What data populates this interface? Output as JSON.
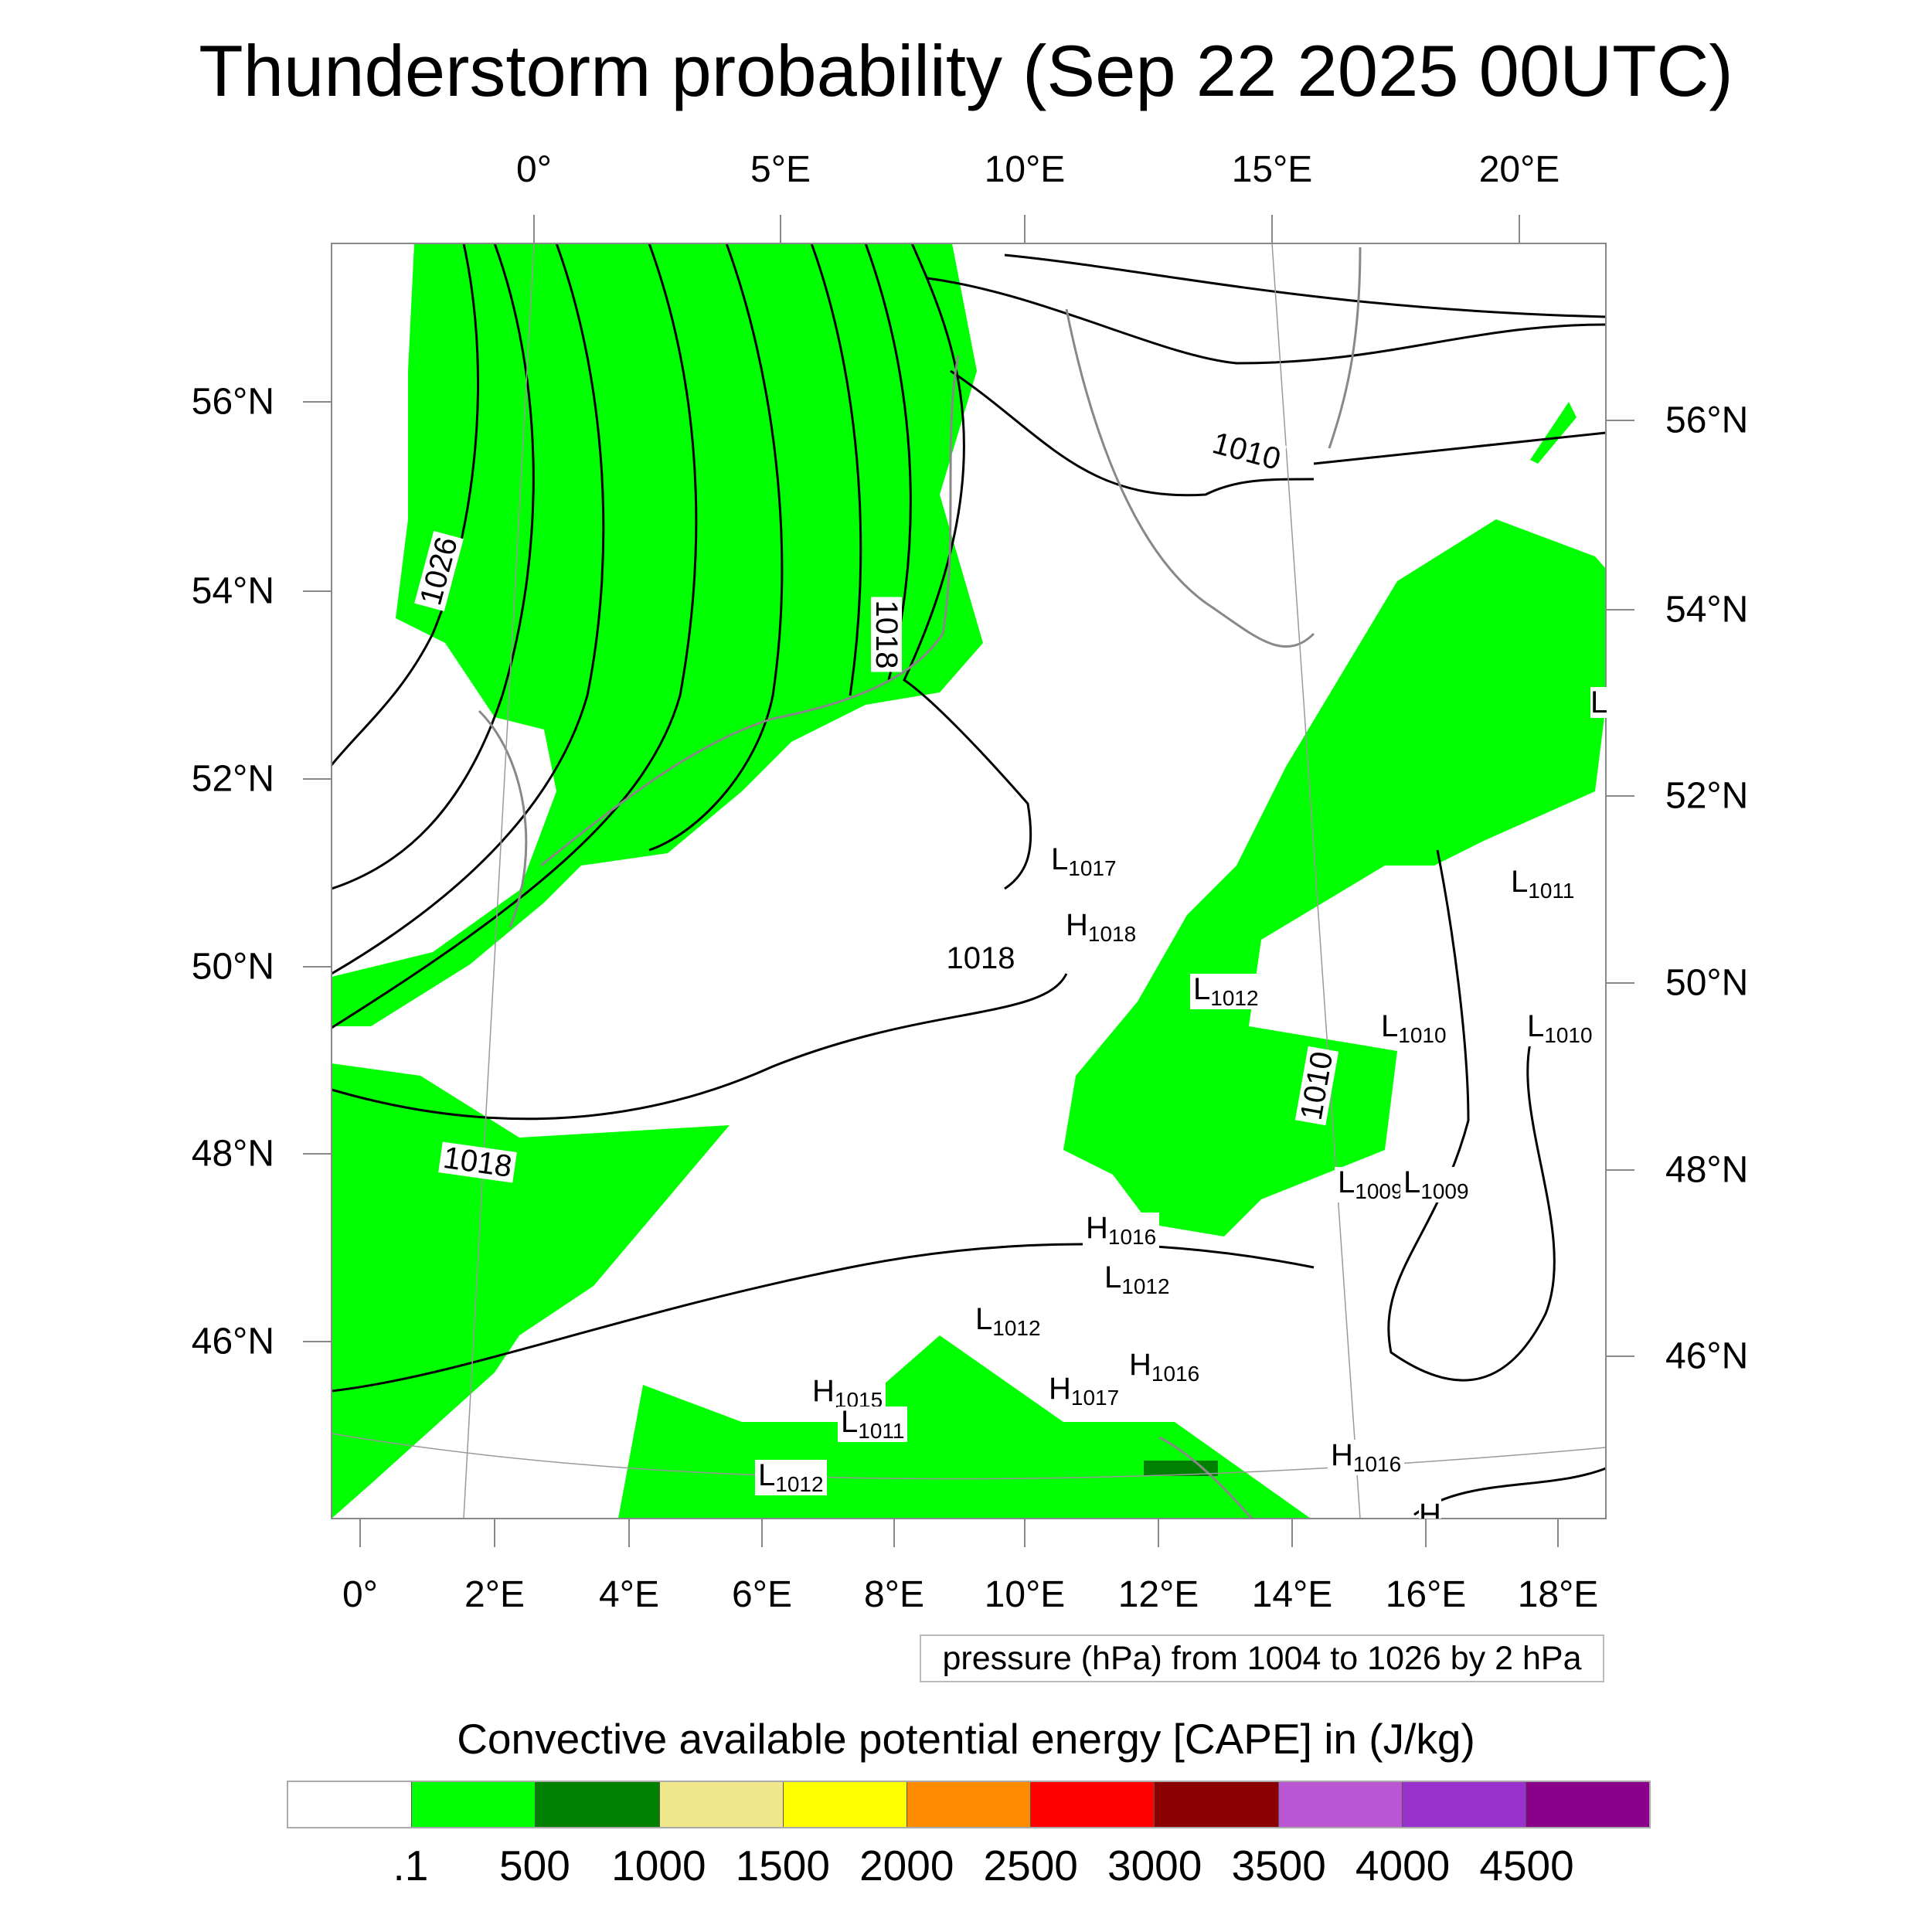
{
  "title": "Thunderstorm probability (Sep 22 2025 00UTC)",
  "axes": {
    "top_lon": [
      "0°",
      "5°E",
      "10°E",
      "15°E",
      "20°E"
    ],
    "bottom_lon": [
      "0°",
      "2°E",
      "4°E",
      "6°E",
      "8°E",
      "10°E",
      "12°E",
      "14°E",
      "16°E",
      "18°E"
    ],
    "left_lat": [
      "56°N",
      "54°N",
      "52°N",
      "50°N",
      "48°N",
      "46°N"
    ],
    "right_lat": [
      "56°N",
      "54°N",
      "52°N",
      "50°N",
      "48°N",
      "46°N"
    ]
  },
  "pressure_centers": [
    {
      "symbol": "L",
      "value": "1017"
    },
    {
      "symbol": "H",
      "value": "1018"
    },
    {
      "symbol": "L",
      "value": "1012"
    },
    {
      "symbol": "L",
      "value": "1010"
    },
    {
      "symbol": "L",
      "value": "1010"
    },
    {
      "symbol": "L",
      "value": "1011"
    },
    {
      "symbol": "L",
      "value": "1009"
    },
    {
      "symbol": "L",
      "value": "1009"
    },
    {
      "symbol": "H",
      "value": "1016"
    },
    {
      "symbol": "L",
      "value": "1012"
    },
    {
      "symbol": "L",
      "value": "1012"
    },
    {
      "symbol": "H",
      "value": "1016"
    },
    {
      "symbol": "H",
      "value": "1017"
    },
    {
      "symbol": "H",
      "value": "1015"
    },
    {
      "symbol": "L",
      "value": "1011"
    },
    {
      "symbol": "L",
      "value": "1012"
    },
    {
      "symbol": "H",
      "value": "1016"
    },
    {
      "symbol": "L",
      "value": ""
    },
    {
      "symbol": "H",
      "value": ""
    }
  ],
  "contour_labels": [
    "1026",
    "1018",
    "1010",
    "1018",
    "1018",
    "1010"
  ],
  "legend_text": "pressure (hPa) from 1004 to 1026 by 2 hPa",
  "colorbar": {
    "title": "Convective available potential energy [CAPE] in (J/kg)",
    "colors": [
      "#ffffff",
      "#00ff00",
      "#008000",
      "#f0e68c",
      "#ffff00",
      "#ff8c00",
      "#ff0000",
      "#8b0000",
      "#ba55d3",
      "#9932cc",
      "#8b008b"
    ],
    "labels": [
      ".1",
      "500",
      "1000",
      "1500",
      "2000",
      "2500",
      "3000",
      "3500",
      "4000",
      "4500"
    ]
  },
  "colors": {
    "cape_low": "#00ff00",
    "cape_mid": "#008000",
    "coastline": "#888888",
    "isobar": "#000000"
  }
}
